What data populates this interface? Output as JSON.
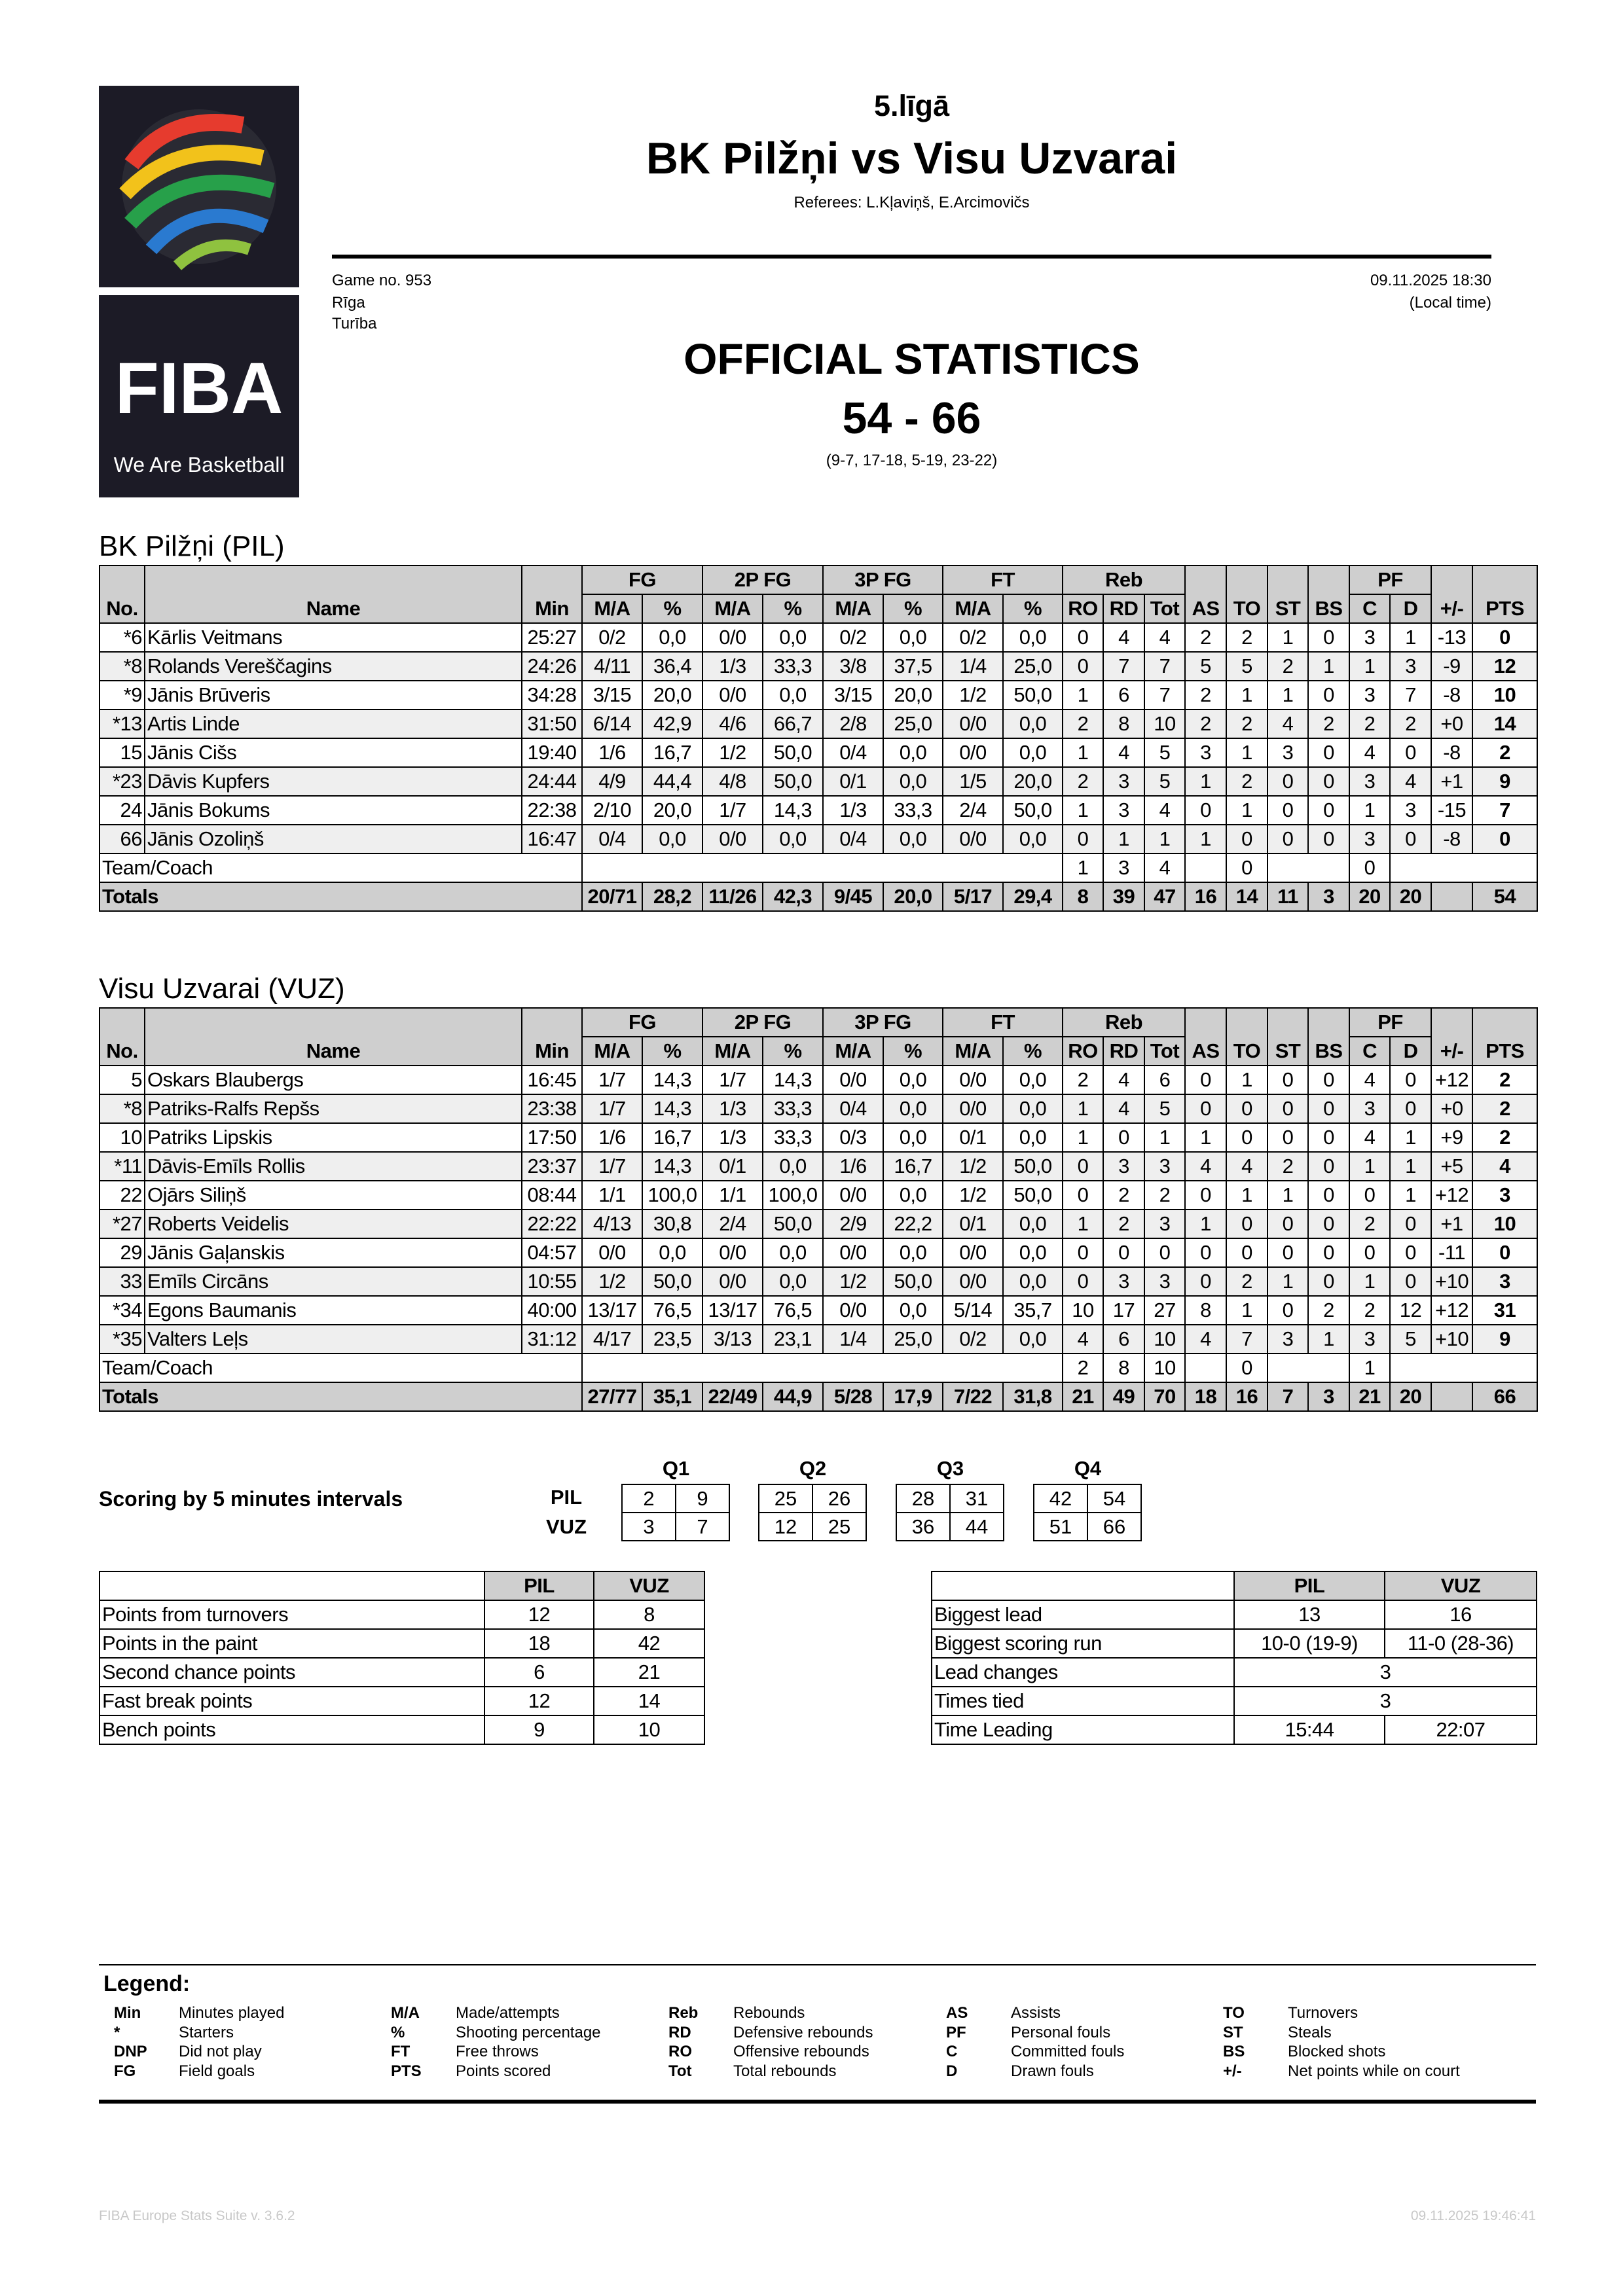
{
  "logo": {
    "brand": "FIBA",
    "tagline": "We Are Basketball"
  },
  "header": {
    "league": "5.līgā",
    "title": "BK Pilžņi vs Visu Uzvarai",
    "referees": "Referees: L.Kļaviņš, E.Arcimovičs",
    "game_no": "Game no. 953",
    "city": "Rīga",
    "venue": "Turība",
    "datetime": "09.11.2025 18:30",
    "local_time": "(Local time)",
    "doc_title": "OFFICIAL STATISTICS",
    "score": "54 - 66",
    "quarters": "(9-7, 17-18, 5-19, 23-22)"
  },
  "box_headers": {
    "no": "No.",
    "name": "Name",
    "min": "Min",
    "fg": "FG",
    "p2": "2P FG",
    "p3": "3P FG",
    "ft": "FT",
    "reb": "Reb",
    "ma": "M/A",
    "pct": "%",
    "ro": "RO",
    "rd": "RD",
    "tot": "Tot",
    "as": "AS",
    "to": "TO",
    "st": "ST",
    "bs": "BS",
    "pf": "PF",
    "c": "C",
    "d": "D",
    "pm": "+/-",
    "pts": "PTS",
    "team_coach": "Team/Coach",
    "totals": "Totals"
  },
  "teams": [
    {
      "heading": "BK Pilžņi (PIL)",
      "players": [
        [
          "*6",
          "Kārlis Veitmans",
          "25:27",
          "0/2",
          "0,0",
          "0/0",
          "0,0",
          "0/2",
          "0,0",
          "0/2",
          "0,0",
          "0",
          "4",
          "4",
          "2",
          "2",
          "1",
          "0",
          "3",
          "1",
          "-13",
          "0"
        ],
        [
          "*8",
          "Rolands Vereščagins",
          "24:26",
          "4/11",
          "36,4",
          "1/3",
          "33,3",
          "3/8",
          "37,5",
          "1/4",
          "25,0",
          "0",
          "7",
          "7",
          "5",
          "5",
          "2",
          "1",
          "1",
          "3",
          "-9",
          "12"
        ],
        [
          "*9",
          "Jānis Brūveris",
          "34:28",
          "3/15",
          "20,0",
          "0/0",
          "0,0",
          "3/15",
          "20,0",
          "1/2",
          "50,0",
          "1",
          "6",
          "7",
          "2",
          "1",
          "1",
          "0",
          "3",
          "7",
          "-8",
          "10"
        ],
        [
          "*13",
          "Artis Linde",
          "31:50",
          "6/14",
          "42,9",
          "4/6",
          "66,7",
          "2/8",
          "25,0",
          "0/0",
          "0,0",
          "2",
          "8",
          "10",
          "2",
          "2",
          "4",
          "2",
          "2",
          "2",
          "+0",
          "14"
        ],
        [
          "15",
          "Jānis Cišs",
          "19:40",
          "1/6",
          "16,7",
          "1/2",
          "50,0",
          "0/4",
          "0,0",
          "0/0",
          "0,0",
          "1",
          "4",
          "5",
          "3",
          "1",
          "3",
          "0",
          "4",
          "0",
          "-8",
          "2"
        ],
        [
          "*23",
          "Dāvis Kupfers",
          "24:44",
          "4/9",
          "44,4",
          "4/8",
          "50,0",
          "0/1",
          "0,0",
          "1/5",
          "20,0",
          "2",
          "3",
          "5",
          "1",
          "2",
          "0",
          "0",
          "3",
          "4",
          "+1",
          "9"
        ],
        [
          "24",
          "Jānis Bokums",
          "22:38",
          "2/10",
          "20,0",
          "1/7",
          "14,3",
          "1/3",
          "33,3",
          "2/4",
          "50,0",
          "1",
          "3",
          "4",
          "0",
          "1",
          "0",
          "0",
          "1",
          "3",
          "-15",
          "7"
        ],
        [
          "66",
          "Jānis Ozoliņš",
          "16:47",
          "0/4",
          "0,0",
          "0/0",
          "0,0",
          "0/4",
          "0,0",
          "0/0",
          "0,0",
          "0",
          "1",
          "1",
          "1",
          "0",
          "0",
          "0",
          "3",
          "0",
          "-8",
          "0"
        ]
      ],
      "team_coach": {
        "ro": "1",
        "rd": "3",
        "tot": "4",
        "to": "0",
        "c": "0"
      },
      "totals": [
        "20/71",
        "28,2",
        "11/26",
        "42,3",
        "9/45",
        "20,0",
        "5/17",
        "29,4",
        "8",
        "39",
        "47",
        "16",
        "14",
        "11",
        "3",
        "20",
        "20",
        "",
        "54"
      ]
    },
    {
      "heading": "Visu Uzvarai (VUZ)",
      "players": [
        [
          "5",
          "Oskars Blaubergs",
          "16:45",
          "1/7",
          "14,3",
          "1/7",
          "14,3",
          "0/0",
          "0,0",
          "0/0",
          "0,0",
          "2",
          "4",
          "6",
          "0",
          "1",
          "0",
          "0",
          "4",
          "0",
          "+12",
          "2"
        ],
        [
          "*8",
          "Patriks-Ralfs Repšs",
          "23:38",
          "1/7",
          "14,3",
          "1/3",
          "33,3",
          "0/4",
          "0,0",
          "0/0",
          "0,0",
          "1",
          "4",
          "5",
          "0",
          "0",
          "0",
          "0",
          "3",
          "0",
          "+0",
          "2"
        ],
        [
          "10",
          "Patriks Lipskis",
          "17:50",
          "1/6",
          "16,7",
          "1/3",
          "33,3",
          "0/3",
          "0,0",
          "0/1",
          "0,0",
          "1",
          "0",
          "1",
          "1",
          "0",
          "0",
          "0",
          "4",
          "1",
          "+9",
          "2"
        ],
        [
          "*11",
          "Dāvis-Emīls Rollis",
          "23:37",
          "1/7",
          "14,3",
          "0/1",
          "0,0",
          "1/6",
          "16,7",
          "1/2",
          "50,0",
          "0",
          "3",
          "3",
          "4",
          "4",
          "2",
          "0",
          "1",
          "1",
          "+5",
          "4"
        ],
        [
          "22",
          "Ojārs Siliņš",
          "08:44",
          "1/1",
          "100,0",
          "1/1",
          "100,0",
          "0/0",
          "0,0",
          "1/2",
          "50,0",
          "0",
          "2",
          "2",
          "0",
          "1",
          "1",
          "0",
          "0",
          "1",
          "+12",
          "3"
        ],
        [
          "*27",
          "Roberts Veidelis",
          "22:22",
          "4/13",
          "30,8",
          "2/4",
          "50,0",
          "2/9",
          "22,2",
          "0/1",
          "0,0",
          "1",
          "2",
          "3",
          "1",
          "0",
          "0",
          "0",
          "2",
          "0",
          "+1",
          "10"
        ],
        [
          "29",
          "Jānis Gaļanskis",
          "04:57",
          "0/0",
          "0,0",
          "0/0",
          "0,0",
          "0/0",
          "0,0",
          "0/0",
          "0,0",
          "0",
          "0",
          "0",
          "0",
          "0",
          "0",
          "0",
          "0",
          "0",
          "-11",
          "0"
        ],
        [
          "33",
          "Emīls Circāns",
          "10:55",
          "1/2",
          "50,0",
          "0/0",
          "0,0",
          "1/2",
          "50,0",
          "0/0",
          "0,0",
          "0",
          "3",
          "3",
          "0",
          "2",
          "1",
          "0",
          "1",
          "0",
          "+10",
          "3"
        ],
        [
          "*34",
          "Egons Baumanis",
          "40:00",
          "13/17",
          "76,5",
          "13/17",
          "76,5",
          "0/0",
          "0,0",
          "5/14",
          "35,7",
          "10",
          "17",
          "27",
          "8",
          "1",
          "0",
          "2",
          "2",
          "12",
          "+12",
          "31"
        ],
        [
          "*35",
          "Valters Leļs",
          "31:12",
          "4/17",
          "23,5",
          "3/13",
          "23,1",
          "1/4",
          "25,0",
          "0/2",
          "0,0",
          "4",
          "6",
          "10",
          "4",
          "7",
          "3",
          "1",
          "3",
          "5",
          "+10",
          "9"
        ]
      ],
      "team_coach": {
        "ro": "2",
        "rd": "8",
        "tot": "10",
        "to": "0",
        "c": "1"
      },
      "totals": [
        "27/77",
        "35,1",
        "22/49",
        "44,9",
        "5/28",
        "17,9",
        "7/22",
        "31,8",
        "21",
        "49",
        "70",
        "18",
        "16",
        "7",
        "3",
        "21",
        "20",
        "",
        "66"
      ]
    }
  ],
  "scoring": {
    "title": "Scoring by 5 minutes intervals",
    "quarters": [
      "Q1",
      "Q2",
      "Q3",
      "Q4"
    ],
    "teams": [
      "PIL",
      "VUZ"
    ],
    "values": {
      "PIL": [
        [
          "2",
          "9"
        ],
        [
          "25",
          "26"
        ],
        [
          "28",
          "31"
        ],
        [
          "42",
          "54"
        ]
      ],
      "VUZ": [
        [
          "3",
          "7"
        ],
        [
          "12",
          "25"
        ],
        [
          "36",
          "44"
        ],
        [
          "51",
          "66"
        ]
      ]
    }
  },
  "points_table": {
    "headers": [
      "",
      "PIL",
      "VUZ"
    ],
    "rows": [
      [
        "Points from turnovers",
        "12",
        "8"
      ],
      [
        "Points in the paint",
        "18",
        "42"
      ],
      [
        "Second chance points",
        "6",
        "21"
      ],
      [
        "Fast break points",
        "12",
        "14"
      ],
      [
        "Bench points",
        "9",
        "10"
      ]
    ]
  },
  "lead_table": {
    "headers": [
      "",
      "PIL",
      "VUZ"
    ],
    "rows": [
      [
        "Biggest lead",
        "13",
        "16"
      ],
      [
        "Biggest scoring run",
        "10-0 (19-9)",
        "11-0 (28-36)"
      ],
      [
        "Lead changes",
        "3"
      ],
      [
        "Times tied",
        "3"
      ],
      [
        "Time Leading",
        "15:44",
        "22:07"
      ]
    ]
  },
  "legend": {
    "title": "Legend:",
    "columns": [
      [
        [
          "Min",
          "Minutes played"
        ],
        [
          "*",
          "Starters"
        ],
        [
          "DNP",
          "Did not play"
        ],
        [
          "FG",
          "Field goals"
        ]
      ],
      [
        [
          "M/A",
          "Made/attempts"
        ],
        [
          "%",
          "Shooting percentage"
        ],
        [
          "FT",
          "Free throws"
        ],
        [
          "PTS",
          "Points scored"
        ]
      ],
      [
        [
          "Reb",
          "Rebounds"
        ],
        [
          "RD",
          "Defensive rebounds"
        ],
        [
          "RO",
          "Offensive rebounds"
        ],
        [
          "Tot",
          "Total rebounds"
        ]
      ],
      [
        [
          "AS",
          "Assists"
        ],
        [
          "PF",
          "Personal fouls"
        ],
        [
          "C",
          "Committed fouls"
        ],
        [
          "D",
          "Drawn fouls"
        ]
      ],
      [
        [
          "TO",
          "Turnovers"
        ],
        [
          "ST",
          "Steals"
        ],
        [
          "BS",
          "Blocked shots"
        ],
        [
          "+/-",
          "Net points while on court"
        ]
      ]
    ]
  },
  "footer": {
    "software": "FIBA Europe Stats Suite v. 3.6.2",
    "printed": "09.11.2025 19:46:41"
  },
  "colors": {
    "header_gray": "#cfcfcf",
    "alt_row": "#efefef",
    "logo_bg": "#1c1b26"
  }
}
